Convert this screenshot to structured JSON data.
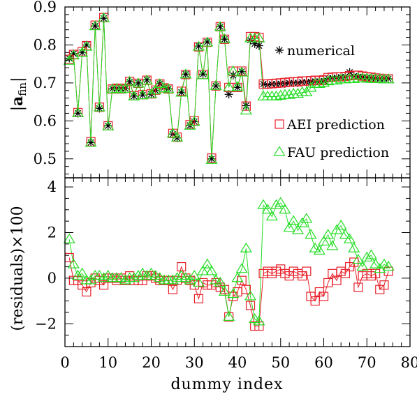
{
  "chart_data": {
    "type": "scatter",
    "colors": {
      "numerical": "#000000",
      "aei": "#e8202a",
      "fau": "#22dd22"
    },
    "x": {
      "label": "dummy index",
      "lim": [
        0,
        80
      ],
      "ticks": [
        0,
        10,
        20,
        30,
        40,
        50,
        60,
        70,
        80
      ]
    },
    "panels": [
      {
        "id": "top",
        "ylabel_prefix": "|",
        "ylabel_main": "a",
        "ylabel_sub": "fin",
        "ylabel_suffix": "|",
        "ylim": [
          0.45,
          0.9
        ],
        "yticks": [
          0.5,
          0.6,
          0.7,
          0.8,
          0.9
        ],
        "ytick_labels": [
          "0.5",
          "0.6",
          "0.7",
          "0.8",
          "0.9"
        ],
        "legend": [
          {
            "series": "numerical",
            "marker": "star",
            "label": "numerical"
          },
          {
            "series": "aei",
            "marker": "square",
            "label": "AEI prediction"
          },
          {
            "series": "fau",
            "marker": "triangle",
            "label": "FAU prediction"
          }
        ],
        "series": [
          {
            "name": "numerical",
            "marker": "star",
            "line": false,
            "values": [
              0.765,
              0.777,
              0.62,
              0.78,
              0.8,
              0.543,
              0.85,
              0.633,
              0.87,
              0.587,
              0.685,
              0.685,
              0.685,
              0.685,
              0.703,
              0.665,
              0.7,
              0.668,
              0.708,
              0.67,
              0.68,
              0.698,
              0.688,
              0.685,
              0.565,
              0.555,
              0.675,
              0.723,
              0.588,
              0.598,
              0.797,
              0.723,
              0.808,
              0.5,
              0.692,
              0.848,
              0.815,
              0.67,
              0.72,
              0.688,
              0.73,
              0.64,
              0.813,
              0.803,
              0.798,
              0.697,
              0.695,
              0.697,
              0.697,
              0.698,
              0.698,
              0.7,
              0.7,
              0.7,
              0.702,
              0.702,
              0.703,
              0.704,
              0.704,
              0.705,
              0.712,
              0.713,
              0.714,
              0.715,
              0.716,
              0.728,
              0.718,
              0.716,
              0.715,
              0.714,
              0.713,
              0.712,
              0.711,
              0.711,
              0.711
            ]
          },
          {
            "name": "aei",
            "marker": "square",
            "line": true,
            "values": [
              0.762,
              0.775,
              0.622,
              0.782,
              0.798,
              0.545,
              0.852,
              0.636,
              0.872,
              0.587,
              0.684,
              0.686,
              0.684,
              0.686,
              0.704,
              0.666,
              0.699,
              0.669,
              0.707,
              0.671,
              0.681,
              0.697,
              0.687,
              0.684,
              0.567,
              0.557,
              0.678,
              0.722,
              0.59,
              0.6,
              0.795,
              0.722,
              0.807,
              0.502,
              0.692,
              0.848,
              0.815,
              0.688,
              0.731,
              0.688,
              0.731,
              0.639,
              0.822,
              0.822,
              0.82,
              0.697,
              0.697,
              0.698,
              0.699,
              0.7,
              0.701,
              0.702,
              0.703,
              0.703,
              0.705,
              0.705,
              0.706,
              0.707,
              0.706,
              0.708,
              0.714,
              0.715,
              0.716,
              0.716,
              0.717,
              0.719,
              0.72,
              0.72,
              0.718,
              0.716,
              0.715,
              0.713,
              0.712,
              0.711,
              0.711
            ]
          },
          {
            "name": "fau",
            "marker": "triangle",
            "line": true,
            "values": [
              0.758,
              0.772,
              0.62,
              0.779,
              0.795,
              0.542,
              0.849,
              0.635,
              0.87,
              0.585,
              0.683,
              0.684,
              0.683,
              0.684,
              0.703,
              0.664,
              0.698,
              0.667,
              0.706,
              0.67,
              0.68,
              0.697,
              0.686,
              0.683,
              0.566,
              0.556,
              0.674,
              0.722,
              0.587,
              0.597,
              0.795,
              0.72,
              0.806,
              0.497,
              0.692,
              0.847,
              0.815,
              0.688,
              0.73,
              0.689,
              0.727,
              0.627,
              0.817,
              0.817,
              0.817,
              0.664,
              0.664,
              0.664,
              0.664,
              0.666,
              0.668,
              0.668,
              0.671,
              0.671,
              0.675,
              0.675,
              0.687,
              0.697,
              0.697,
              0.7,
              0.704,
              0.706,
              0.706,
              0.709,
              0.709,
              0.71,
              0.71,
              0.712,
              0.712,
              0.711,
              0.71,
              0.71,
              0.71,
              0.709,
              0.709
            ]
          }
        ]
      },
      {
        "id": "bottom",
        "ylabel": "(residuals)×100",
        "ylim": [
          -3,
          4.4
        ],
        "yticks": [
          -2,
          0,
          2,
          4
        ],
        "ytick_labels": [
          "−2",
          "0",
          "2",
          "4"
        ],
        "series": [
          {
            "name": "aei",
            "marker": "square",
            "line": true,
            "values": [
              0.9,
              -0.1,
              -0.1,
              -0.3,
              -0.6,
              -0.2,
              0.0,
              -0.1,
              -0.3,
              0.0,
              0.0,
              -0.1,
              0.0,
              -0.1,
              0.1,
              -0.1,
              -0.1,
              -0.1,
              0.1,
              0.1,
              0.0,
              -0.1,
              -0.1,
              -0.1,
              -0.5,
              -0.1,
              0.5,
              0.0,
              -0.1,
              -0.3,
              -0.9,
              -0.2,
              -0.3,
              -0.3,
              -0.2,
              -0.4,
              -0.5,
              -1.7,
              -0.8,
              -0.6,
              -0.1,
              -0.5,
              -1.2,
              -2.1,
              -2.1,
              0.2,
              0.3,
              0.2,
              0.3,
              0.4,
              0.2,
              0.1,
              0.3,
              0.2,
              0.1,
              0.3,
              -0.8,
              -1.0,
              -0.6,
              -0.8,
              -0.2,
              0.2,
              -0.1,
              0.3,
              0.2,
              0.5,
              0.7,
              -0.4,
              0.1,
              0.2,
              0.1,
              0.2,
              -0.5,
              -0.3,
              0.3
            ]
          },
          {
            "name": "fau",
            "marker": "triangle",
            "line": true,
            "values": [
              1.7,
              0.6,
              0.1,
              0.2,
              -0.1,
              -0.1,
              0.1,
              0.1,
              0.0,
              0.1,
              0.0,
              0.0,
              0.0,
              -0.1,
              0.0,
              0.0,
              0.1,
              0.2,
              0.1,
              0.2,
              0.1,
              0.0,
              -0.1,
              -0.1,
              -0.1,
              0.0,
              0.1,
              0.0,
              -0.1,
              0.1,
              -0.2,
              0.3,
              0.6,
              0.3,
              -0.1,
              -0.2,
              -0.6,
              -1.7,
              -0.7,
              0.0,
              0.4,
              1.3,
              -0.8,
              -1.8,
              -1.9,
              3.2,
              3.0,
              2.7,
              3.2,
              3.3,
              3.0,
              2.2,
              2.5,
              2.1,
              2.4,
              2.6,
              1.9,
              1.3,
              1.2,
              1.6,
              1.9,
              1.4,
              2.1,
              2.3,
              1.9,
              1.7,
              1.3,
              0.8,
              0.5,
              0.9,
              1.0,
              0.6,
              0.4,
              0.6,
              0.5
            ]
          }
        ]
      }
    ]
  }
}
